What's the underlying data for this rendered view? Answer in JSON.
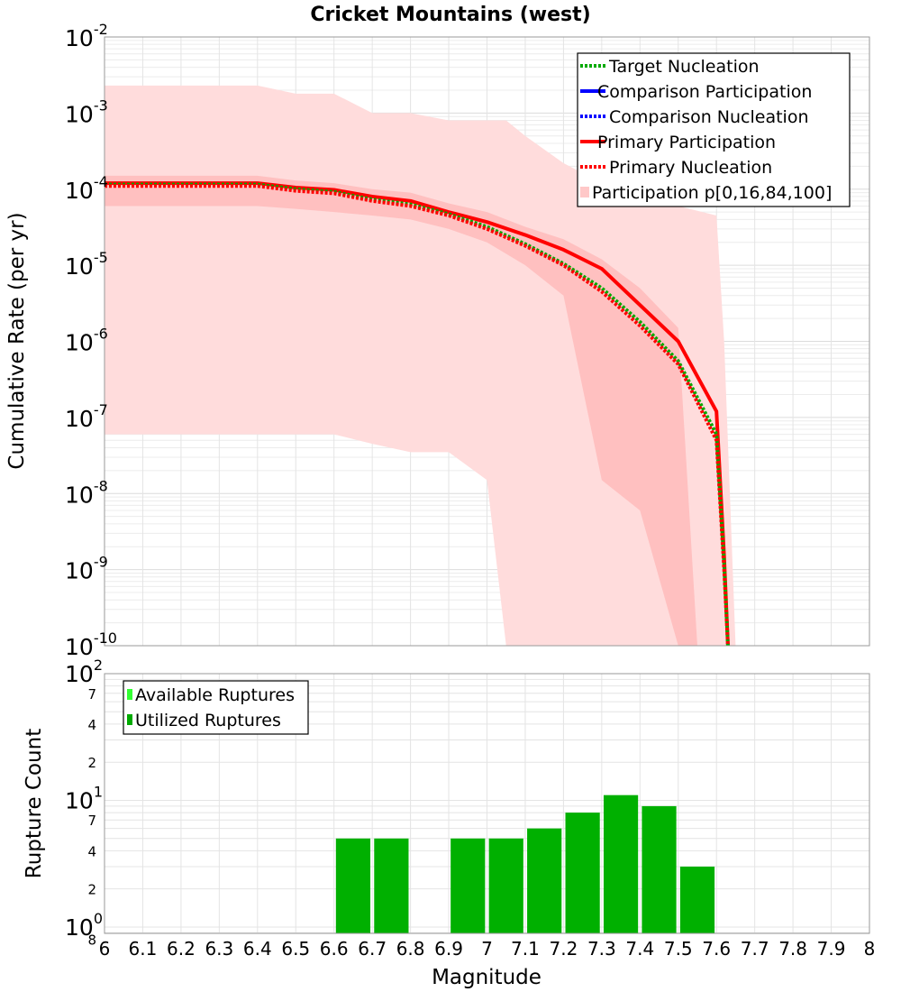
{
  "chart_data": [
    {
      "type": "line",
      "title": "Cricket Mountains (west)",
      "ylabel": "Cumulative Rate (per yr)",
      "xlabel": "",
      "xlim": [
        6,
        8
      ],
      "ylim_log10": [
        -10,
        -2
      ],
      "y_scale": "log",
      "grid": true,
      "legend_position": "top-right",
      "y_tick_labels": [
        {
          "base": "10",
          "exp": "-2"
        },
        {
          "base": "10",
          "exp": "-3"
        },
        {
          "base": "10",
          "exp": "-4"
        },
        {
          "base": "10",
          "exp": "-5"
        },
        {
          "base": "10",
          "exp": "-6"
        },
        {
          "base": "10",
          "exp": "-7"
        },
        {
          "base": "10",
          "exp": "-8"
        },
        {
          "base": "10",
          "exp": "-9"
        },
        {
          "base": "10",
          "exp": "-10"
        }
      ],
      "bands": [
        {
          "name": "Participation p[0,100]",
          "color": "#ffdcdc",
          "x": [
            6.0,
            6.4,
            6.5,
            6.6,
            6.7,
            6.8,
            6.9,
            7.0,
            7.05,
            7.1,
            7.2,
            7.3,
            7.4,
            7.5,
            7.6,
            7.62,
            7.65
          ],
          "upper": [
            0.0023,
            0.0023,
            0.0018,
            0.0018,
            0.001,
            0.001,
            0.0008,
            0.0008,
            0.0008,
            0.0005,
            0.00022,
            0.00012,
            8e-05,
            6e-05,
            4.5e-05,
            1e-06,
            1e-10
          ],
          "lower": [
            6e-08,
            6e-08,
            6e-08,
            6e-08,
            4.5e-08,
            3.5e-08,
            3.5e-08,
            1.5e-08,
            1e-10,
            1e-10,
            1e-10,
            1e-10,
            1e-10,
            1e-10,
            1e-10,
            1e-10,
            1e-10
          ]
        },
        {
          "name": "Participation p[16,84]",
          "color": "#ffc0c0",
          "x": [
            6.0,
            6.4,
            6.5,
            6.6,
            6.7,
            6.8,
            6.9,
            7.0,
            7.1,
            7.2,
            7.3,
            7.4,
            7.5,
            7.55
          ],
          "upper": [
            0.00015,
            0.00015,
            0.00013,
            0.00012,
            0.0001,
            9e-05,
            6.5e-05,
            5e-05,
            3.2e-05,
            2.2e-05,
            1.2e-05,
            5e-06,
            1.5e-06,
            1e-10
          ],
          "lower": [
            6e-05,
            6e-05,
            5.5e-05,
            5e-05,
            4.5e-05,
            4e-05,
            3e-05,
            2e-05,
            1e-05,
            4e-06,
            1.5e-08,
            6e-09,
            1e-10,
            1e-10
          ]
        }
      ],
      "series": [
        {
          "name": "Primary Participation",
          "color": "#ff0000",
          "style": "solid",
          "x": [
            6.0,
            6.4,
            6.5,
            6.6,
            6.7,
            6.8,
            6.9,
            7.0,
            7.1,
            7.2,
            7.3,
            7.4,
            7.5,
            7.6,
            7.62,
            7.63
          ],
          "values": [
            0.00012,
            0.00012,
            0.000105,
            9.8e-05,
            8e-05,
            7e-05,
            5e-05,
            3.7e-05,
            2.5e-05,
            1.6e-05,
            9e-06,
            3e-06,
            1e-06,
            1.2e-07,
            1.5e-09,
            1e-10
          ]
        },
        {
          "name": "Primary Nucleation",
          "color": "#ff0000",
          "style": "dotted",
          "x": [
            6.0,
            6.4,
            6.5,
            6.6,
            6.7,
            6.8,
            6.9,
            7.0,
            7.1,
            7.2,
            7.3,
            7.4,
            7.5,
            7.6,
            7.62,
            7.63
          ],
          "values": [
            0.00011,
            0.00011,
            9.5e-05,
            8.8e-05,
            7e-05,
            6e-05,
            4.5e-05,
            3e-05,
            1.8e-05,
            1e-05,
            4.5e-06,
            1.6e-06,
            5e-07,
            5e-08,
            1e-09,
            1e-10
          ]
        },
        {
          "name": "Target Nucleation",
          "color": "#00aa00",
          "style": "dotted",
          "x": [
            6.0,
            6.4,
            6.5,
            6.6,
            6.7,
            6.8,
            6.9,
            7.0,
            7.1,
            7.2,
            7.3,
            7.4,
            7.5,
            7.6,
            7.62,
            7.63
          ],
          "values": [
            0.000115,
            0.000115,
            0.0001,
            9.2e-05,
            7.3e-05,
            6.3e-05,
            4.7e-05,
            3.2e-05,
            1.9e-05,
            1.05e-05,
            5e-06,
            1.8e-06,
            5.5e-07,
            6e-08,
            1.2e-09,
            1e-10
          ]
        }
      ],
      "legend": [
        {
          "label": "Target Nucleation",
          "color": "#00aa00",
          "style": "dotted"
        },
        {
          "label": "Comparison Participation",
          "color": "#0000ff",
          "style": "solid"
        },
        {
          "label": "Comparison Nucleation",
          "color": "#0000ff",
          "style": "dotted"
        },
        {
          "label": "Primary Participation",
          "color": "#ff0000",
          "style": "solid"
        },
        {
          "label": "Primary Nucleation",
          "color": "#ff0000",
          "style": "dotted"
        },
        {
          "label": "Participation p[0,16,84,100]",
          "color": "#ffc8c8",
          "style": "box"
        }
      ]
    },
    {
      "type": "bar",
      "xlabel": "Magnitude",
      "ylabel": "Rupture Count",
      "xlim": [
        6,
        8
      ],
      "y_scale": "log",
      "ylim_log10": [
        -0.05,
        2
      ],
      "grid": true,
      "legend_position": "top-left",
      "x_tick_labels": [
        "6",
        "6.1",
        "6.2",
        "6.3",
        "6.4",
        "6.5",
        "6.6",
        "6.7",
        "6.8",
        "6.9",
        "7",
        "7.1",
        "7.2",
        "7.3",
        "7.4",
        "7.5",
        "7.6",
        "7.7",
        "7.8",
        "7.9",
        "8"
      ],
      "y_major_labels": [
        {
          "base": "10",
          "exp": "2",
          "value": 100
        },
        {
          "base": "10",
          "exp": "1",
          "value": 10
        },
        {
          "base": "10",
          "exp": "0",
          "value": 1
        }
      ],
      "y_minor_labels": [
        {
          "label": "7",
          "value": 70
        },
        {
          "label": "4",
          "value": 40
        },
        {
          "label": "2",
          "value": 20
        },
        {
          "label": "7",
          "value": 7
        },
        {
          "label": "4",
          "value": 4
        },
        {
          "label": "2",
          "value": 2
        },
        {
          "label": "8",
          "value": 0.8
        }
      ],
      "bar_width": 0.09,
      "bar_color": "#00b000",
      "x": [
        6.65,
        6.75,
        6.95,
        7.05,
        7.15,
        7.25,
        7.35,
        7.45,
        7.55
      ],
      "values": [
        5,
        5,
        5,
        5,
        6,
        8,
        11,
        9,
        3
      ],
      "legend": [
        {
          "label": "Available Ruptures",
          "color": "#33ff33"
        },
        {
          "label": "Utilized Ruptures",
          "color": "#00aa00"
        }
      ]
    }
  ]
}
